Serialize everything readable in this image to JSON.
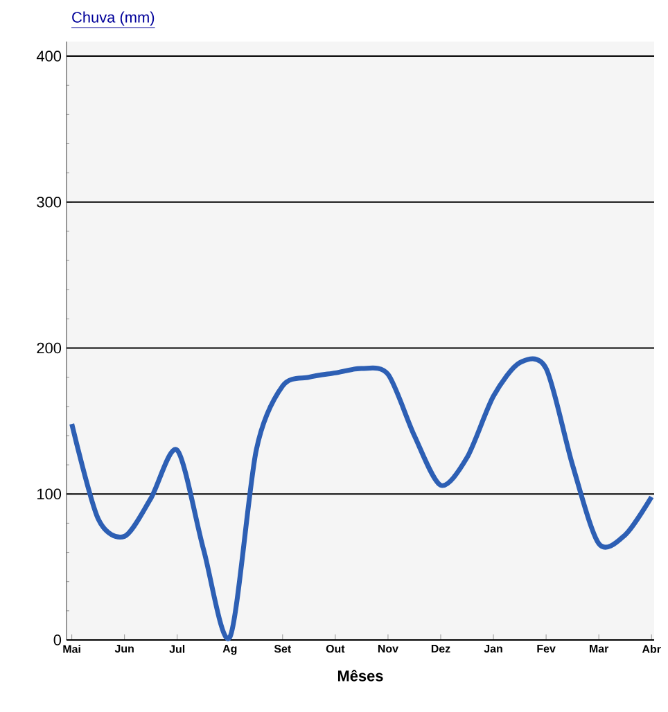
{
  "chart_data": {
    "type": "line",
    "title": "Chuva (mm)",
    "xlabel": "Mêses",
    "categories": [
      "Mai",
      null,
      "Jun",
      null,
      "Jul",
      null,
      "Ag",
      null,
      "Set",
      null,
      "Out",
      null,
      "Nov",
      null,
      "Dez",
      null,
      "Jan",
      null,
      "Fev",
      null,
      "Mar",
      null,
      "Abr"
    ],
    "ylim": [
      0,
      410
    ],
    "yticks": [
      0,
      100,
      200,
      300,
      400
    ],
    "grid": "y",
    "marker": "none",
    "line_style": "solid",
    "series": [
      {
        "color": "#2d5fb4",
        "values": [
          148,
          83,
          71,
          97,
          130,
          62,
          2,
          130,
          174,
          180,
          183,
          186,
          182,
          140,
          106,
          125,
          167,
          190,
          186,
          120,
          66,
          72,
          98
        ]
      }
    ]
  }
}
